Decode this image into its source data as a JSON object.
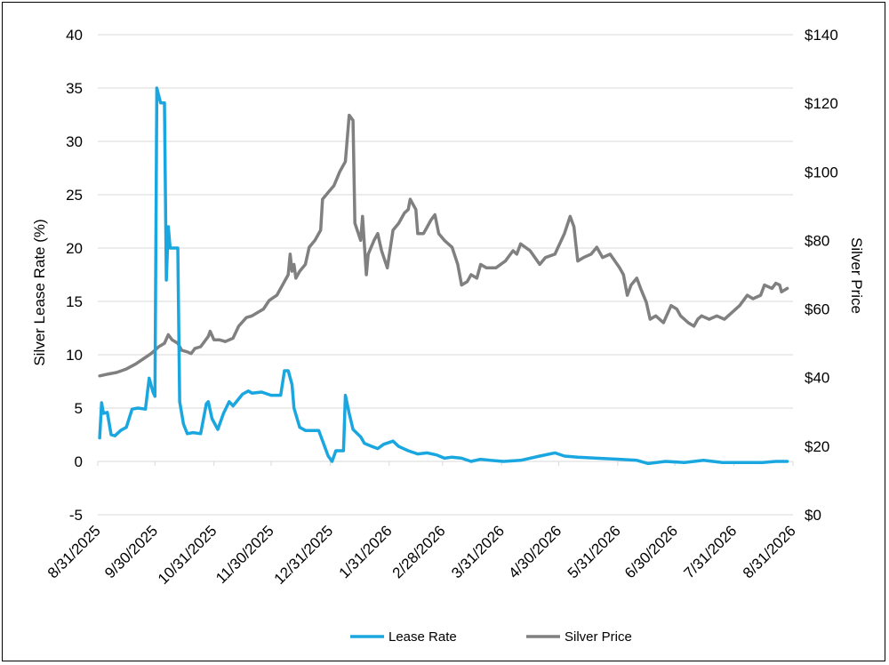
{
  "chart_data": {
    "type": "line",
    "title": "",
    "xlabel": "",
    "ylabel_left": "Silver Lease Rate (%)",
    "ylabel_right": "Silver Price",
    "ylim_left": [
      -5,
      40
    ],
    "ylim_right": [
      0,
      140
    ],
    "xlim": [
      "2025-08-31",
      "2026-08-31"
    ],
    "left_ticks": [
      "-5",
      "0",
      "5",
      "10",
      "15",
      "20",
      "25",
      "30",
      "35",
      "40"
    ],
    "right_ticks": [
      "$0",
      "$20",
      "$40",
      "$60",
      "$80",
      "$100",
      "$120",
      "$140"
    ],
    "x_ticks": [
      "8/31/2025",
      "9/30/2025",
      "10/31/2025",
      "11/30/2025",
      "12/31/2025",
      "1/31/2026",
      "2/28/2026",
      "3/31/2026",
      "4/30/2026",
      "5/31/2026",
      "6/30/2026",
      "7/31/2026",
      "8/31/2026"
    ],
    "grid": true,
    "legend_position": "bottom",
    "series": [
      {
        "name": "Lease Rate",
        "axis": "left",
        "color": "#1aa7e0",
        "points": [
          [
            "2025-09-01",
            2.2
          ],
          [
            "2025-09-02",
            5.5
          ],
          [
            "2025-09-03",
            4.5
          ],
          [
            "2025-09-05",
            4.6
          ],
          [
            "2025-09-07",
            2.5
          ],
          [
            "2025-09-09",
            2.4
          ],
          [
            "2025-09-12",
            2.9
          ],
          [
            "2025-09-15",
            3.2
          ],
          [
            "2025-09-18",
            4.9
          ],
          [
            "2025-09-21",
            5.0
          ],
          [
            "2025-09-25",
            4.9
          ],
          [
            "2025-09-27",
            7.8
          ],
          [
            "2025-09-29",
            6.5
          ],
          [
            "2025-09-30",
            6.1
          ],
          [
            "2025-10-01",
            35.0
          ],
          [
            "2025-10-03",
            33.6
          ],
          [
            "2025-10-05",
            33.6
          ],
          [
            "2025-10-06",
            17.0
          ],
          [
            "2025-10-07",
            22.0
          ],
          [
            "2025-10-08",
            20.0
          ],
          [
            "2025-10-12",
            20.0
          ],
          [
            "2025-10-13",
            5.6
          ],
          [
            "2025-10-15",
            3.5
          ],
          [
            "2025-10-17",
            2.6
          ],
          [
            "2025-10-20",
            2.7
          ],
          [
            "2025-10-24",
            2.6
          ],
          [
            "2025-10-27",
            5.4
          ],
          [
            "2025-10-28",
            5.6
          ],
          [
            "2025-10-30",
            4.0
          ],
          [
            "2025-11-02",
            3.0
          ],
          [
            "2025-11-05",
            4.5
          ],
          [
            "2025-11-08",
            5.6
          ],
          [
            "2025-11-10",
            5.2
          ],
          [
            "2025-11-15",
            6.3
          ],
          [
            "2025-11-18",
            6.6
          ],
          [
            "2025-11-20",
            6.4
          ],
          [
            "2025-11-25",
            6.5
          ],
          [
            "2025-11-30",
            6.2
          ],
          [
            "2025-12-05",
            6.2
          ],
          [
            "2025-12-07",
            8.5
          ],
          [
            "2025-12-09",
            8.5
          ],
          [
            "2025-12-11",
            7.2
          ],
          [
            "2025-12-12",
            5.0
          ],
          [
            "2025-12-15",
            3.2
          ],
          [
            "2025-12-18",
            2.9
          ],
          [
            "2025-12-25",
            2.9
          ],
          [
            "2025-12-30",
            0.5
          ],
          [
            "2026-01-01",
            0.0
          ],
          [
            "2026-01-03",
            1.0
          ],
          [
            "2026-01-07",
            1.0
          ],
          [
            "2026-01-08",
            6.2
          ],
          [
            "2026-01-10",
            4.5
          ],
          [
            "2026-01-12",
            3.0
          ],
          [
            "2026-01-16",
            2.3
          ],
          [
            "2026-01-18",
            1.7
          ],
          [
            "2026-01-22",
            1.4
          ],
          [
            "2026-01-25",
            1.2
          ],
          [
            "2026-01-28",
            1.6
          ],
          [
            "2026-02-02",
            1.9
          ],
          [
            "2026-02-05",
            1.4
          ],
          [
            "2026-02-10",
            1.0
          ],
          [
            "2026-02-15",
            0.7
          ],
          [
            "2026-02-20",
            0.8
          ],
          [
            "2026-02-25",
            0.6
          ],
          [
            "2026-03-01",
            0.3
          ],
          [
            "2026-03-05",
            0.4
          ],
          [
            "2026-03-10",
            0.3
          ],
          [
            "2026-03-15",
            0.0
          ],
          [
            "2026-03-20",
            0.2
          ],
          [
            "2026-03-25",
            0.1
          ],
          [
            "2026-04-01",
            0.0
          ],
          [
            "2026-04-10",
            0.1
          ],
          [
            "2026-04-20",
            0.5
          ],
          [
            "2026-04-28",
            0.8
          ],
          [
            "2026-05-03",
            0.5
          ],
          [
            "2026-05-10",
            0.4
          ],
          [
            "2026-05-20",
            0.3
          ],
          [
            "2026-06-01",
            0.2
          ],
          [
            "2026-06-10",
            0.1
          ],
          [
            "2026-06-16",
            -0.2
          ],
          [
            "2026-06-25",
            0.0
          ],
          [
            "2026-07-05",
            -0.1
          ],
          [
            "2026-07-15",
            0.1
          ],
          [
            "2026-07-25",
            -0.1
          ],
          [
            "2026-08-05",
            -0.1
          ],
          [
            "2026-08-15",
            -0.1
          ],
          [
            "2026-08-22",
            0.0
          ],
          [
            "2026-08-28",
            0.0
          ]
        ]
      },
      {
        "name": "Silver Price",
        "axis": "right",
        "color": "#808080",
        "points": [
          [
            "2025-09-01",
            40.5
          ],
          [
            "2025-09-05",
            41.0
          ],
          [
            "2025-09-10",
            41.5
          ],
          [
            "2025-09-15",
            42.5
          ],
          [
            "2025-09-20",
            44.0
          ],
          [
            "2025-09-24",
            45.5
          ],
          [
            "2025-09-28",
            47.0
          ],
          [
            "2025-10-02",
            49.0
          ],
          [
            "2025-10-05",
            50.0
          ],
          [
            "2025-10-07",
            52.5
          ],
          [
            "2025-10-09",
            51.0
          ],
          [
            "2025-10-12",
            50.0
          ],
          [
            "2025-10-14",
            48.0
          ],
          [
            "2025-10-17",
            47.5
          ],
          [
            "2025-10-19",
            47.0
          ],
          [
            "2025-10-21",
            48.5
          ],
          [
            "2025-10-24",
            49.0
          ],
          [
            "2025-10-28",
            52.0
          ],
          [
            "2025-10-29",
            53.5
          ],
          [
            "2025-10-31",
            51.0
          ],
          [
            "2025-11-03",
            51.0
          ],
          [
            "2025-11-06",
            50.5
          ],
          [
            "2025-11-10",
            51.5
          ],
          [
            "2025-11-13",
            55.0
          ],
          [
            "2025-11-17",
            57.5
          ],
          [
            "2025-11-20",
            58.0
          ],
          [
            "2025-11-23",
            59.0
          ],
          [
            "2025-11-26",
            60.0
          ],
          [
            "2025-11-29",
            62.5
          ],
          [
            "2025-12-03",
            64.0
          ],
          [
            "2025-12-06",
            67.0
          ],
          [
            "2025-12-09",
            70.0
          ],
          [
            "2025-12-10",
            76.0
          ],
          [
            "2025-12-11",
            71.0
          ],
          [
            "2025-12-12",
            73.0
          ],
          [
            "2025-12-13",
            69.0
          ],
          [
            "2025-12-15",
            71.0
          ],
          [
            "2025-12-18",
            73.0
          ],
          [
            "2025-12-20",
            78.0
          ],
          [
            "2025-12-23",
            80.0
          ],
          [
            "2025-12-26",
            83.0
          ],
          [
            "2025-12-27",
            92.0
          ],
          [
            "2025-12-30",
            94.0
          ],
          [
            "2026-01-02",
            96.0
          ],
          [
            "2026-01-05",
            100.0
          ],
          [
            "2026-01-08",
            103.0
          ],
          [
            "2026-01-10",
            116.5
          ],
          [
            "2026-01-12",
            115.0
          ],
          [
            "2026-01-13",
            85.0
          ],
          [
            "2026-01-16",
            80.0
          ],
          [
            "2026-01-17",
            87.0
          ],
          [
            "2026-01-19",
            70.0
          ],
          [
            "2026-01-20",
            76.0
          ],
          [
            "2026-01-23",
            80.0
          ],
          [
            "2026-01-25",
            82.0
          ],
          [
            "2026-01-27",
            77.0
          ],
          [
            "2026-01-30",
            72.0
          ],
          [
            "2026-02-02",
            83.0
          ],
          [
            "2026-02-05",
            85.0
          ],
          [
            "2026-02-08",
            88.0
          ],
          [
            "2026-02-10",
            89.0
          ],
          [
            "2026-02-11",
            92.0
          ],
          [
            "2026-02-14",
            89.0
          ],
          [
            "2026-02-15",
            82.0
          ],
          [
            "2026-02-18",
            82.0
          ],
          [
            "2026-02-22",
            86.0
          ],
          [
            "2026-02-24",
            87.5
          ],
          [
            "2026-02-26",
            82.0
          ],
          [
            "2026-03-01",
            80.0
          ],
          [
            "2026-03-05",
            78.0
          ],
          [
            "2026-03-08",
            73.0
          ],
          [
            "2026-03-10",
            67.0
          ],
          [
            "2026-03-13",
            68.0
          ],
          [
            "2026-03-15",
            70.0
          ],
          [
            "2026-03-18",
            69.0
          ],
          [
            "2026-03-20",
            73.0
          ],
          [
            "2026-03-23",
            72.0
          ],
          [
            "2026-03-28",
            72.0
          ],
          [
            "2026-04-02",
            74.0
          ],
          [
            "2026-04-06",
            77.0
          ],
          [
            "2026-04-08",
            76.0
          ],
          [
            "2026-04-10",
            79.0
          ],
          [
            "2026-04-15",
            77.0
          ],
          [
            "2026-04-20",
            73.0
          ],
          [
            "2026-04-23",
            75.0
          ],
          [
            "2026-04-28",
            76.0
          ],
          [
            "2026-05-03",
            82.0
          ],
          [
            "2026-05-06",
            87.0
          ],
          [
            "2026-05-08",
            84.0
          ],
          [
            "2026-05-10",
            74.0
          ],
          [
            "2026-05-13",
            75.0
          ],
          [
            "2026-05-17",
            76.0
          ],
          [
            "2026-05-20",
            78.0
          ],
          [
            "2026-05-23",
            75.0
          ],
          [
            "2026-05-27",
            76.0
          ],
          [
            "2026-06-01",
            72.0
          ],
          [
            "2026-06-03",
            70.0
          ],
          [
            "2026-06-05",
            64.0
          ],
          [
            "2026-06-07",
            67.0
          ],
          [
            "2026-06-10",
            69.0
          ],
          [
            "2026-06-12",
            66.0
          ],
          [
            "2026-06-15",
            62.0
          ],
          [
            "2026-06-17",
            57.0
          ],
          [
            "2026-06-20",
            58.0
          ],
          [
            "2026-06-24",
            56.0
          ],
          [
            "2026-06-28",
            61.0
          ],
          [
            "2026-07-01",
            60.0
          ],
          [
            "2026-07-03",
            58.0
          ],
          [
            "2026-07-07",
            56.0
          ],
          [
            "2026-07-10",
            55.0
          ],
          [
            "2026-07-12",
            57.0
          ],
          [
            "2026-07-14",
            58.0
          ],
          [
            "2026-07-18",
            57.0
          ],
          [
            "2026-07-22",
            58.0
          ],
          [
            "2026-07-26",
            57.0
          ],
          [
            "2026-07-30",
            59.0
          ],
          [
            "2026-08-03",
            61.0
          ],
          [
            "2026-08-07",
            64.0
          ],
          [
            "2026-08-10",
            63.0
          ],
          [
            "2026-08-14",
            64.0
          ],
          [
            "2026-08-16",
            67.0
          ],
          [
            "2026-08-20",
            66.0
          ],
          [
            "2026-08-22",
            67.5
          ],
          [
            "2026-08-24",
            67.0
          ],
          [
            "2026-08-25",
            65.0
          ],
          [
            "2026-08-28",
            66.0
          ]
        ]
      }
    ]
  }
}
